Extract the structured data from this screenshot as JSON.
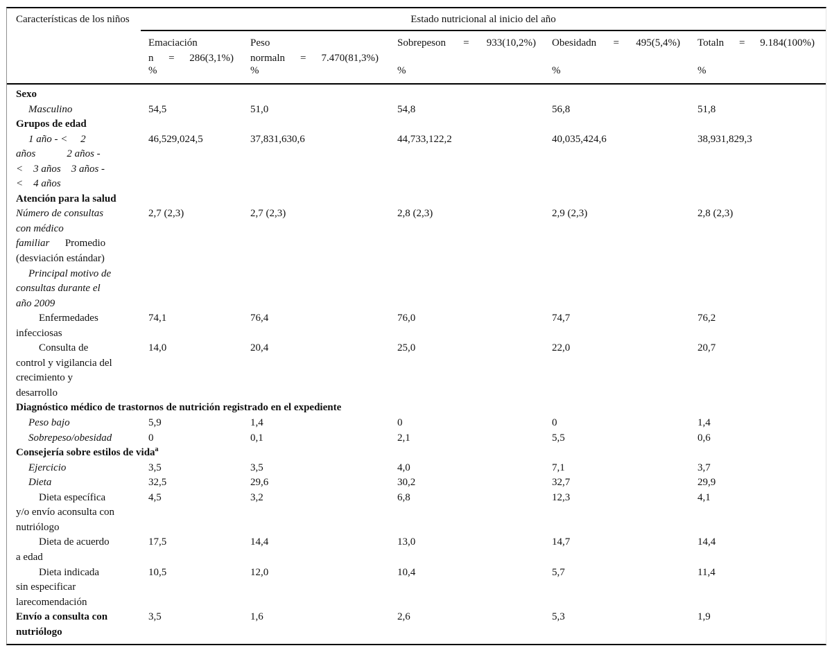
{
  "table": {
    "corner_title": "Características de los niños",
    "group_title": "Estado nutricional al inicio del año",
    "columns": [
      {
        "lines": [
          [
            "Emaciación"
          ],
          [
            "n",
            "=",
            "286(3,1%)"
          ]
        ],
        "unit": "%"
      },
      {
        "lines": [
          [
            "Peso"
          ],
          [
            "normaln",
            "=",
            "7.470(81,3%)"
          ]
        ],
        "unit": "%"
      },
      {
        "lines": [
          [
            "Sobrepeson",
            "=",
            "933(10,2%)"
          ]
        ],
        "unit": "%"
      },
      {
        "lines": [
          [
            "Obesidadn",
            "=",
            "495(5,4%)"
          ]
        ],
        "unit": "%"
      },
      {
        "lines": [
          [
            "Totaln",
            "=",
            "9.184(100%)"
          ]
        ],
        "unit": "%"
      }
    ],
    "rows": [
      {
        "style": "bold",
        "section": true,
        "lines": [
          [
            {
              "t": "Sexo"
            }
          ]
        ]
      },
      {
        "style": "italic",
        "lines": [
          [
            {
              "t": "Masculino",
              "ind": 1
            }
          ]
        ],
        "values": [
          "54,5",
          "51,0",
          "54,8",
          "56,8",
          "51,8"
        ]
      },
      {
        "style": "bold",
        "section": true,
        "lines": [
          [
            {
              "t": "Grupos de edad"
            }
          ]
        ]
      },
      {
        "style": "italic",
        "lines": [
          [
            {
              "t": "1 año - <  2",
              "ind": 1
            }
          ],
          [
            {
              "t": "años   2 años -"
            }
          ],
          [
            {
              "t": "< 3 años 3 años -"
            }
          ],
          [
            {
              "t": "< 4 años"
            }
          ]
        ],
        "values": [
          "46,529,024,5",
          "37,831,630,6",
          "44,733,122,2",
          "40,035,424,6",
          "38,931,829,3"
        ]
      },
      {
        "style": "bold",
        "section": true,
        "lines": [
          [
            {
              "t": "Atención para la salud"
            }
          ]
        ]
      },
      {
        "style": "italic",
        "lines": [
          [
            {
              "t": "Número de consultas"
            }
          ],
          [
            {
              "t": "con médico"
            }
          ],
          [
            {
              "t": "familiar  "
            },
            {
              "t": "Promedio",
              "i": false
            }
          ],
          [
            {
              "t": "(desviación estándar)",
              "i": false
            }
          ]
        ],
        "values": [
          "2,7 (2,3)",
          "2,7 (2,3)",
          "2,8 (2,3)",
          "2,9 (2,3)",
          "2,8 (2,3)"
        ]
      },
      {
        "style": "italic",
        "lines": [
          [
            {
              "t": "Principal motivo de",
              "ind": 1
            }
          ],
          [
            {
              "t": "consultas durante el"
            }
          ],
          [
            {
              "t": "año 2009"
            }
          ]
        ],
        "values": [
          "",
          "",
          "",
          "",
          ""
        ]
      },
      {
        "style": "plain",
        "lines": [
          [
            {
              "t": "Enfermedades",
              "ind": 2
            }
          ],
          [
            {
              "t": "infecciosas"
            }
          ]
        ],
        "values": [
          "74,1",
          "76,4",
          "76,0",
          "74,7",
          "76,2"
        ]
      },
      {
        "style": "plain",
        "lines": [
          [
            {
              "t": "Consulta de",
              "ind": 2
            }
          ],
          [
            {
              "t": "control y vigilancia del"
            }
          ],
          [
            {
              "t": "crecimiento y"
            }
          ],
          [
            {
              "t": "desarrollo"
            }
          ]
        ],
        "values": [
          "14,0",
          "20,4",
          "25,0",
          "22,0",
          "20,7"
        ]
      },
      {
        "style": "bold",
        "section": true,
        "lines": [
          [
            {
              "t": "Diagnóstico médico de trastornos de nutrición registrado en el expediente"
            }
          ]
        ]
      },
      {
        "style": "italic",
        "lines": [
          [
            {
              "t": "Peso bajo",
              "ind": 1
            }
          ]
        ],
        "values": [
          "5,9",
          "1,4",
          "0",
          "0",
          "1,4"
        ]
      },
      {
        "style": "italic",
        "lines": [
          [
            {
              "t": "Sobrepeso/obesidad",
              "ind": 1
            }
          ]
        ],
        "values": [
          "0",
          "0,1",
          "2,1",
          "5,5",
          "0,6"
        ]
      },
      {
        "style": "bold",
        "section": true,
        "lines": [
          [
            {
              "t": "Consejería sobre estilos de vida"
            },
            {
              "t": "a",
              "sup": true
            }
          ]
        ]
      },
      {
        "style": "italic",
        "lines": [
          [
            {
              "t": "Ejercicio",
              "ind": 1
            }
          ]
        ],
        "values": [
          "3,5",
          "3,5",
          "4,0",
          "7,1",
          "3,7"
        ]
      },
      {
        "style": "italic",
        "lines": [
          [
            {
              "t": "Dieta",
              "ind": 1
            }
          ]
        ],
        "values": [
          "32,5",
          "29,6",
          "30,2",
          "32,7",
          "29,9"
        ]
      },
      {
        "style": "plain",
        "lines": [
          [
            {
              "t": "Dieta específica",
              "ind": 2
            }
          ],
          [
            {
              "t": "y/o envío aconsulta con"
            }
          ],
          [
            {
              "t": "nutriólogo"
            }
          ]
        ],
        "values": [
          "4,5",
          "3,2",
          "6,8",
          "12,3",
          "4,1"
        ]
      },
      {
        "style": "plain",
        "lines": [
          [
            {
              "t": "Dieta de acuerdo",
              "ind": 2
            }
          ],
          [
            {
              "t": "a edad"
            }
          ]
        ],
        "values": [
          "17,5",
          "14,4",
          "13,0",
          "14,7",
          "14,4"
        ]
      },
      {
        "style": "plain",
        "lines": [
          [
            {
              "t": "Dieta indicada",
              "ind": 2
            }
          ],
          [
            {
              "t": "sin especificar"
            }
          ],
          [
            {
              "t": "larecomendación"
            }
          ]
        ],
        "values": [
          "10,5",
          "12,0",
          "10,4",
          "5,7",
          "11,4"
        ]
      },
      {
        "style": "bold",
        "lines": [
          [
            {
              "t": "Envío a consulta con"
            }
          ],
          [
            {
              "t": "nutriólogo"
            }
          ]
        ],
        "values": [
          "3,5",
          "1,6",
          "2,6",
          "5,3",
          "1,9"
        ]
      }
    ]
  }
}
